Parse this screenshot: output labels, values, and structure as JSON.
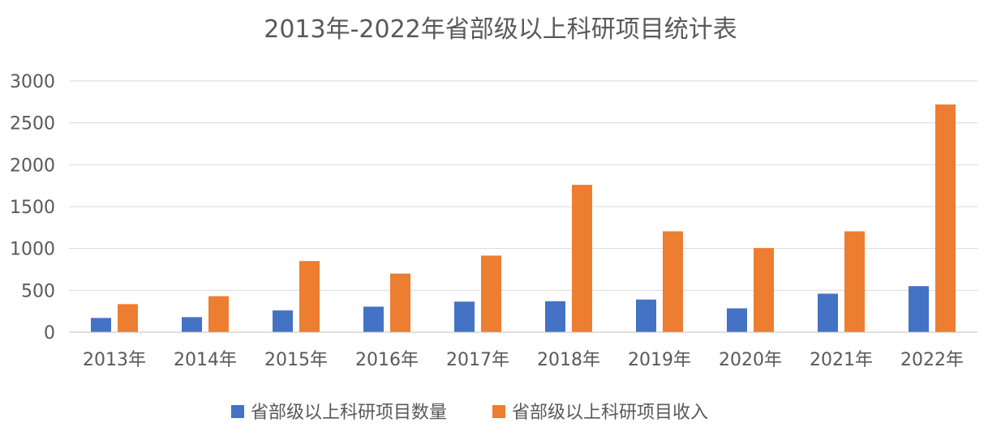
{
  "chart_data": {
    "type": "bar",
    "title": "2013年-2022年省部级以上科研项目统计表",
    "xlabel": "",
    "ylabel": "",
    "categories": [
      "2013年",
      "2014年",
      "2015年",
      "2016年",
      "2017年",
      "2018年",
      "2019年",
      "2020年",
      "2021年",
      "2022年"
    ],
    "series": [
      {
        "name": "省部级以上科研项目数量",
        "color": "#4472c4",
        "values": [
          170,
          180,
          260,
          305,
          365,
          370,
          390,
          285,
          460,
          550
        ]
      },
      {
        "name": "省部级以上科研项目收入",
        "color": "#ed7d31",
        "values": [
          335,
          430,
          850,
          700,
          915,
          1760,
          1205,
          1005,
          1205,
          2720
        ]
      }
    ],
    "ylim": [
      0,
      3000
    ],
    "yticks": [
      0,
      500,
      1000,
      1500,
      2000,
      2500,
      3000
    ],
    "grid": true,
    "legend": "bottom"
  }
}
